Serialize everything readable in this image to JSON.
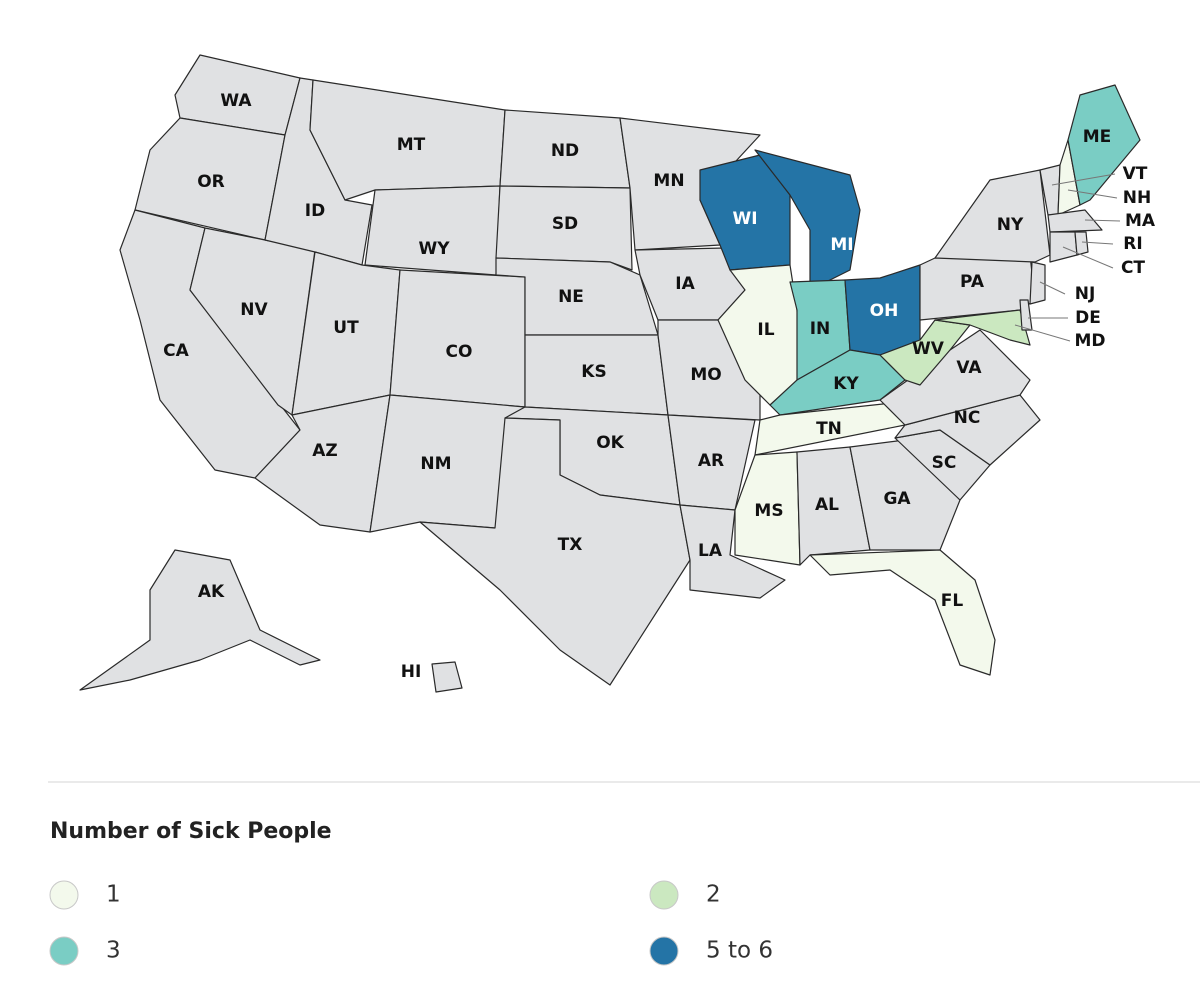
{
  "map": {
    "no_data_color": "#e0e1e3",
    "legend_title": "Number of Sick People",
    "legend": [
      {
        "label": "1",
        "color": "#f3f9ec"
      },
      {
        "label": "2",
        "color": "#cbe8c0"
      },
      {
        "label": "3",
        "color": "#7acdc4"
      },
      {
        "label": "5 to 6",
        "color": "#2474a6"
      }
    ],
    "states": [
      {
        "label": "WA",
        "group": null
      },
      {
        "label": "OR",
        "group": null
      },
      {
        "label": "CA",
        "group": null
      },
      {
        "label": "NV",
        "group": null
      },
      {
        "label": "ID",
        "group": null
      },
      {
        "label": "MT",
        "group": null
      },
      {
        "label": "WY",
        "group": null
      },
      {
        "label": "UT",
        "group": null
      },
      {
        "label": "AZ",
        "group": null
      },
      {
        "label": "CO",
        "group": null
      },
      {
        "label": "NM",
        "group": null
      },
      {
        "label": "ND",
        "group": null
      },
      {
        "label": "SD",
        "group": null
      },
      {
        "label": "NE",
        "group": null
      },
      {
        "label": "KS",
        "group": null
      },
      {
        "label": "OK",
        "group": null
      },
      {
        "label": "TX",
        "group": null
      },
      {
        "label": "MN",
        "group": null
      },
      {
        "label": "IA",
        "group": null
      },
      {
        "label": "MO",
        "group": null
      },
      {
        "label": "AR",
        "group": null
      },
      {
        "label": "LA",
        "group": null
      },
      {
        "label": "WI",
        "group": 3
      },
      {
        "label": "MI",
        "group": 3
      },
      {
        "label": "IL",
        "group": 0
      },
      {
        "label": "IN",
        "group": 2
      },
      {
        "label": "OH",
        "group": 3
      },
      {
        "label": "KY",
        "group": 2
      },
      {
        "label": "TN",
        "group": 0
      },
      {
        "label": "MS",
        "group": 0
      },
      {
        "label": "AL",
        "group": null
      },
      {
        "label": "GA",
        "group": null
      },
      {
        "label": "FL",
        "group": 0
      },
      {
        "label": "SC",
        "group": null
      },
      {
        "label": "NC",
        "group": null
      },
      {
        "label": "VA",
        "group": null
      },
      {
        "label": "WV",
        "group": 1
      },
      {
        "label": "PA",
        "group": null
      },
      {
        "label": "NY",
        "group": null
      },
      {
        "label": "MD",
        "group": 1
      },
      {
        "label": "DE",
        "group": null
      },
      {
        "label": "NJ",
        "group": null
      },
      {
        "label": "VT",
        "group": null
      },
      {
        "label": "NH",
        "group": 0
      },
      {
        "label": "ME",
        "group": 2
      },
      {
        "label": "MA",
        "group": null
      },
      {
        "label": "CT",
        "group": null
      },
      {
        "label": "RI",
        "group": null
      },
      {
        "label": "AK",
        "group": null
      },
      {
        "label": "HI",
        "group": null
      }
    ]
  }
}
